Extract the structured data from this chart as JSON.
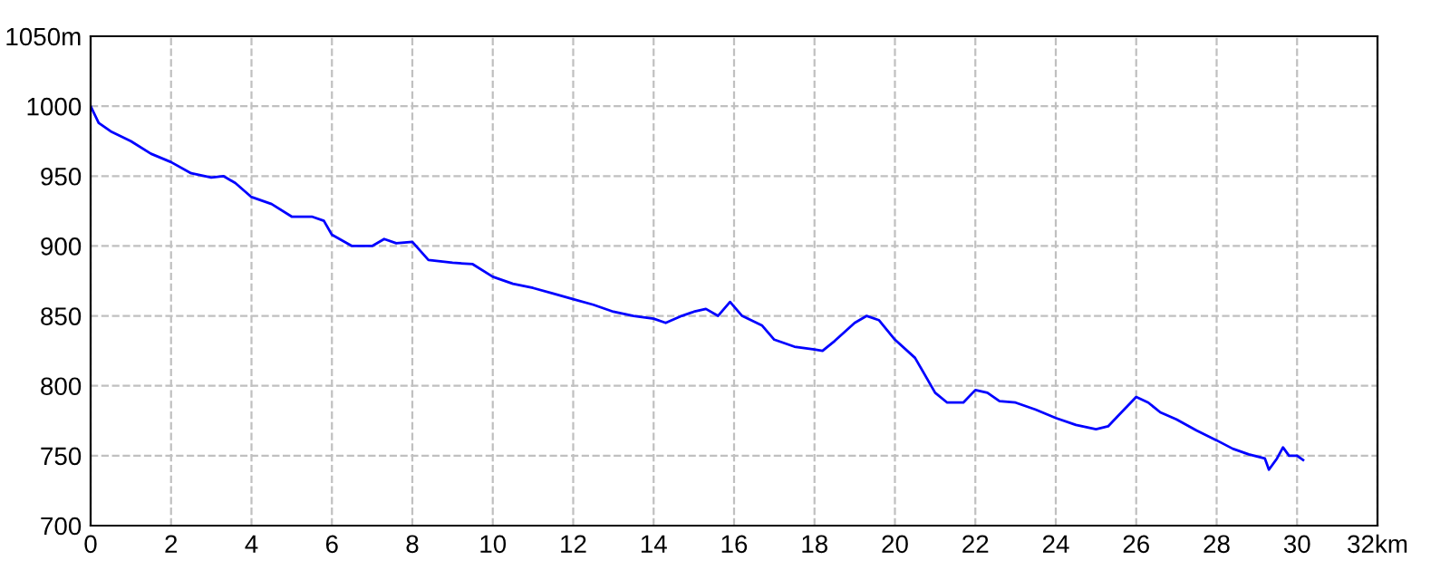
{
  "chart_data": {
    "type": "line",
    "x": [
      0,
      0.2,
      0.5,
      1,
      1.5,
      2,
      2.5,
      3,
      3.3,
      3.6,
      4,
      4.5,
      5,
      5.5,
      5.8,
      6,
      6.5,
      7,
      7.3,
      7.6,
      8,
      8.4,
      9,
      9.5,
      10,
      10.5,
      11,
      11.5,
      12,
      12.5,
      13,
      13.5,
      14,
      14.3,
      14.7,
      15,
      15.3,
      15.6,
      15.9,
      16.2,
      16.7,
      17,
      17.5,
      18,
      18.2,
      18.5,
      19,
      19.3,
      19.6,
      20,
      20.5,
      21,
      21.3,
      21.7,
      22,
      22.3,
      22.6,
      23,
      23.5,
      24,
      24.5,
      25,
      25.3,
      25.6,
      26,
      26.3,
      26.6,
      27,
      27.5,
      28,
      28.4,
      28.8,
      29.2,
      29.3,
      29.5,
      29.65,
      29.8,
      30,
      30.15
    ],
    "series": [
      {
        "color": "#0000ff",
        "values": [
          1000,
          988,
          982,
          975,
          966,
          960,
          952,
          949,
          950,
          945,
          935,
          930,
          921,
          921,
          918,
          908,
          900,
          900,
          905,
          902,
          903,
          890,
          888,
          887,
          878,
          873,
          870,
          866,
          862,
          858,
          853,
          850,
          848,
          845,
          850,
          853,
          855,
          850,
          860,
          850,
          843,
          833,
          828,
          826,
          825,
          832,
          845,
          850,
          847,
          833,
          820,
          795,
          788,
          788,
          797,
          795,
          789,
          788,
          783,
          777,
          772,
          769,
          771,
          780,
          792,
          788,
          781,
          776,
          768,
          761,
          755,
          751,
          748,
          740,
          748,
          756,
          750,
          750,
          747
        ]
      }
    ],
    "xlim": [
      0,
      32
    ],
    "ylim": [
      700,
      1050
    ],
    "xticks": [
      0,
      2,
      4,
      6,
      8,
      10,
      12,
      14,
      16,
      18,
      20,
      22,
      24,
      26,
      28,
      30,
      {
        "value": 32,
        "label": "32km"
      }
    ],
    "yticks": [
      700,
      750,
      800,
      850,
      900,
      950,
      1000,
      {
        "value": 1050,
        "label": "1050m"
      }
    ],
    "grid": true,
    "line_style": "solid",
    "marker": "none"
  }
}
